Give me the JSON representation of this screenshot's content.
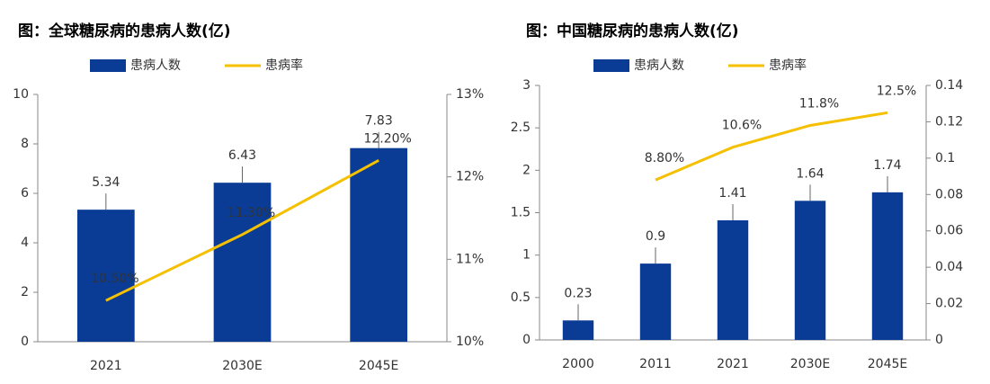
{
  "chart_data": [
    {
      "type": "bar",
      "title": "图：全球糖尿病的患病人数(亿)",
      "categories": [
        "2021",
        "2030E",
        "2045E"
      ],
      "series": [
        {
          "name": "患病人数",
          "color": "#0a3c96",
          "values": [
            5.34,
            6.43,
            7.83
          ]
        },
        {
          "name": "患病率",
          "color": "#f5c000",
          "axis": "y2",
          "values": [
            10.5,
            11.3,
            12.2
          ],
          "value_labels": [
            "10.50%",
            "11.30%",
            "12.20%"
          ]
        }
      ],
      "ylim": [
        0,
        10
      ],
      "yticks": [
        0,
        2,
        4,
        6,
        8,
        10
      ],
      "y2lim": [
        10,
        13
      ],
      "y2ticks": [
        {
          "value": 10,
          "label": "10%"
        },
        {
          "value": 11,
          "label": "11%"
        },
        {
          "value": 12,
          "label": "12%"
        },
        {
          "value": 13,
          "label": "13%"
        }
      ],
      "legend": "top"
    },
    {
      "type": "bar",
      "title": "图：中国糖尿病的患病人数(亿)",
      "categories": [
        "2000",
        "2011",
        "2021",
        "2030E",
        "2045E"
      ],
      "series": [
        {
          "name": "患病人数",
          "color": "#0a3c96",
          "values": [
            0.23,
            0.9,
            1.41,
            1.64,
            1.74
          ]
        },
        {
          "name": "患病率",
          "color": "#f5c000",
          "axis": "y2",
          "values": [
            null,
            0.088,
            0.106,
            0.118,
            0.125
          ],
          "value_labels": [
            null,
            "8.80%",
            "10.6%",
            "11.8%",
            "12.5%"
          ]
        }
      ],
      "ylim": [
        0,
        3
      ],
      "yticks": [
        0,
        0.5,
        1,
        1.5,
        2,
        2.5,
        3
      ],
      "y2lim": [
        0,
        0.14
      ],
      "y2ticks": [
        0,
        0.02,
        0.04,
        0.06,
        0.08,
        0.1,
        0.12,
        0.14
      ],
      "legend": "top"
    }
  ]
}
